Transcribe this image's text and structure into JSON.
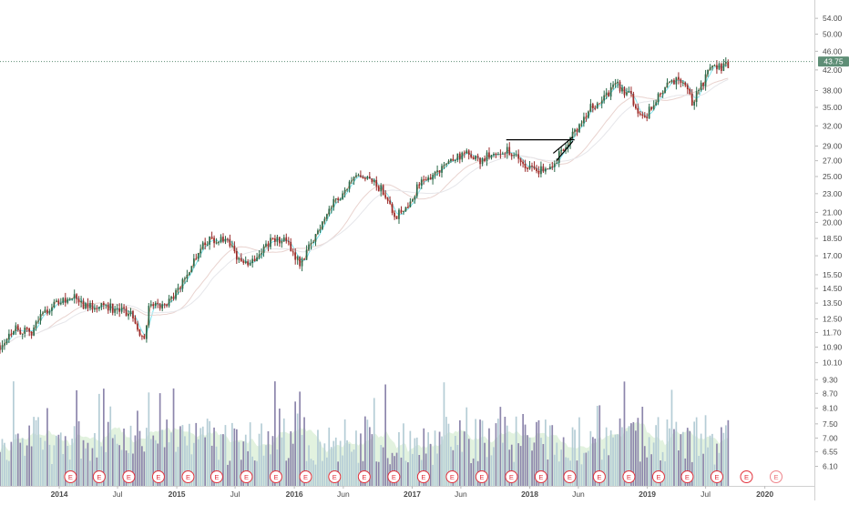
{
  "chart_data": {
    "type": "candlestick",
    "log_scale": true,
    "x_range": [
      "2013-07-01",
      "2020-05-31"
    ],
    "y_range": [
      5.9,
      58.0
    ],
    "grid": false,
    "y_ticks": [
      "54.00",
      "50.00",
      "46.00",
      "42.00",
      "38.00",
      "35.00",
      "32.00",
      "29.00",
      "27.00",
      "25.00",
      "23.00",
      "21.00",
      "20.00",
      "18.50",
      "17.00",
      "15.50",
      "14.50",
      "13.50",
      "12.50",
      "11.70",
      "10.90",
      "10.10",
      "9.30",
      "8.70",
      "8.10",
      "7.50",
      "7.00",
      "6.55",
      "6.10"
    ],
    "x_ticks": [
      {
        "date": "2014-01-01",
        "label": "2014"
      },
      {
        "date": "2014-07-01",
        "label": "Jul"
      },
      {
        "date": "2015-01-01",
        "label": "2015"
      },
      {
        "date": "2015-07-01",
        "label": "Jul"
      },
      {
        "date": "2016-01-01",
        "label": "2016"
      },
      {
        "date": "2016-06-01",
        "label": "Jun"
      },
      {
        "date": "2017-01-01",
        "label": "2017"
      },
      {
        "date": "2017-06-01",
        "label": "Jun"
      },
      {
        "date": "2018-01-01",
        "label": "2018"
      },
      {
        "date": "2018-06-01",
        "label": "Jun"
      },
      {
        "date": "2019-01-01",
        "label": "2019"
      },
      {
        "date": "2019-07-01",
        "label": "Jul"
      },
      {
        "date": "2020-01-01",
        "label": "2020"
      }
    ],
    "last_price": {
      "value": 43.75,
      "label": "43.75"
    },
    "price_anchors": [
      [
        "2013-07-01",
        11.0
      ],
      [
        "2013-08-15",
        12.0
      ],
      [
        "2013-10-01",
        11.6
      ],
      [
        "2013-11-15",
        13.0
      ],
      [
        "2014-01-01",
        13.6
      ],
      [
        "2014-02-15",
        13.9
      ],
      [
        "2014-04-01",
        13.2
      ],
      [
        "2014-05-15",
        13.5
      ],
      [
        "2014-07-01",
        13.0
      ],
      [
        "2014-08-15",
        12.8
      ],
      [
        "2014-09-20",
        11.3
      ],
      [
        "2014-10-10",
        13.6
      ],
      [
        "2014-11-15",
        13.2
      ],
      [
        "2015-01-01",
        14.2
      ],
      [
        "2015-02-10",
        16.0
      ],
      [
        "2015-03-20",
        18.1
      ],
      [
        "2015-05-01",
        18.4
      ],
      [
        "2015-06-15",
        18.0
      ],
      [
        "2015-07-25",
        16.2
      ],
      [
        "2015-09-01",
        16.9
      ],
      [
        "2015-10-15",
        18.2
      ],
      [
        "2015-12-01",
        18.4
      ],
      [
        "2016-01-20",
        16.4
      ],
      [
        "2016-03-01",
        18.4
      ],
      [
        "2016-04-15",
        21.3
      ],
      [
        "2016-06-01",
        23.3
      ],
      [
        "2016-07-15",
        24.8
      ],
      [
        "2016-09-01",
        24.3
      ],
      [
        "2016-10-15",
        22.8
      ],
      [
        "2016-11-10",
        20.6
      ],
      [
        "2016-12-15",
        21.8
      ],
      [
        "2017-02-01",
        24.5
      ],
      [
        "2017-03-15",
        25.4
      ],
      [
        "2017-05-01",
        27.2
      ],
      [
        "2017-06-15",
        27.9
      ],
      [
        "2017-08-01",
        26.9
      ],
      [
        "2017-09-15",
        28.4
      ],
      [
        "2017-11-01",
        28.2
      ],
      [
        "2017-12-15",
        26.3
      ],
      [
        "2018-02-01",
        25.8
      ],
      [
        "2018-03-15",
        26.6
      ],
      [
        "2018-04-20",
        28.8
      ],
      [
        "2018-05-20",
        31.0
      ],
      [
        "2018-07-01",
        34.5
      ],
      [
        "2018-08-15",
        36.3
      ],
      [
        "2018-09-25",
        39.2
      ],
      [
        "2018-11-10",
        37.0
      ],
      [
        "2018-12-20",
        33.0
      ],
      [
        "2019-02-01",
        36.5
      ],
      [
        "2019-03-15",
        39.5
      ],
      [
        "2019-04-15",
        40.2
      ],
      [
        "2019-05-20",
        35.8
      ],
      [
        "2019-06-20",
        39.0
      ],
      [
        "2019-07-20",
        42.6
      ],
      [
        "2019-08-20",
        42.3
      ],
      [
        "2019-09-15",
        43.6
      ]
    ],
    "volume_range": [
      0,
      100
    ],
    "volume_colors": {
      "up": "#b5cdd6",
      "down": "#8d86ac"
    },
    "volume_area_color": "#d6ecd2",
    "trendline": {
      "color": "#000000",
      "horizontal": {
        "from": "2017-10-20",
        "to": "2018-05-20",
        "value": 29.9
      },
      "wedge_upper": [
        [
          "2018-03-15",
          28.0
        ],
        [
          "2018-05-15",
          30.3
        ]
      ],
      "wedge_lower": [
        [
          "2018-03-25",
          27.0
        ],
        [
          "2018-05-15",
          29.7
        ]
      ]
    },
    "earnings_marker": {
      "label": "E",
      "color": "#e2323c"
    },
    "earnings_dates": [
      "2014-02-05",
      "2014-05-05",
      "2014-08-05",
      "2014-11-05",
      "2015-02-05",
      "2015-05-05",
      "2015-08-05",
      "2015-11-05",
      "2016-02-05",
      "2016-05-05",
      "2016-08-05",
      "2016-11-05",
      "2017-02-05",
      "2017-05-05",
      "2017-08-05",
      "2017-11-05",
      "2018-02-05",
      "2018-05-05",
      "2018-08-05",
      "2018-11-05",
      "2019-02-05",
      "2019-05-05",
      "2019-08-05",
      "2019-11-05"
    ],
    "upcoming_earnings_date": "2020-02-05",
    "moving_averages": [
      {
        "period": 8,
        "color": "#f3a48c"
      },
      {
        "period": 20,
        "color": "#7fe3ec"
      },
      {
        "period": 110,
        "color": "#e9d3cf"
      },
      {
        "period": 150,
        "color": "#e6e6ea"
      }
    ],
    "colors": {
      "up": "#2b6a4a",
      "down": "#992b2b",
      "price_line": "#5e8e76",
      "axis_text": "#4a4a4a"
    }
  }
}
